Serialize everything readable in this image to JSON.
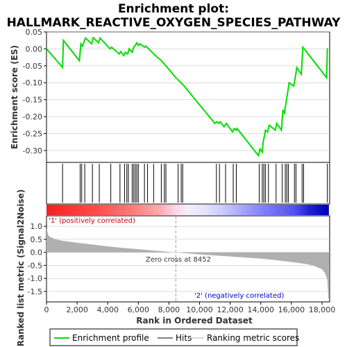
{
  "chart_data": {
    "type": "line",
    "title_line1": "Enrichment plot:",
    "title_line2": "HALLMARK_REACTIVE_OXYGEN_SPECIES_PATHWAY",
    "ylabel_top": "Enrichment score (ES)",
    "ylabel_bottom": "Ranked list metric (Signal2Noise)",
    "xlabel": "Rank in Ordered Dataset",
    "xlim": [
      0,
      18500
    ],
    "es_ylim": [
      -0.335,
      0.05
    ],
    "metric_ylim": [
      -1.9,
      1.4
    ],
    "x_ticks": [
      0,
      2000,
      4000,
      6000,
      8000,
      10000,
      12000,
      14000,
      16000,
      18000
    ],
    "x_tick_labels": [
      "0",
      "2,000",
      "4,000",
      "6,000",
      "8,000",
      "10,000",
      "12,000",
      "14,000",
      "16,000",
      "18,000"
    ],
    "es_ticks": [
      0.05,
      0.0,
      -0.05,
      -0.1,
      -0.15,
      -0.2,
      -0.25,
      -0.3
    ],
    "es_tick_labels": [
      "0.05",
      "0.00",
      "-0.05",
      "-0.10",
      "-0.15",
      "-0.20",
      "-0.25",
      "-0.30"
    ],
    "metric_ticks": [
      1.0,
      0.5,
      0.0,
      -0.5,
      -1.0,
      -1.5
    ],
    "metric_tick_labels": [
      "1.0",
      "0.5",
      "0.0",
      "-0.5",
      "-1.0",
      "-1.5"
    ],
    "hits": [
      1050,
      2200,
      2300,
      2500,
      3000,
      3450,
      4200,
      4800,
      5100,
      5250,
      5350,
      5600,
      5700,
      5800,
      5900,
      6000,
      6400,
      6600,
      7000,
      7500,
      7700,
      7800,
      8600,
      8800,
      8900,
      11100,
      11300,
      11700,
      12200,
      12400,
      13900,
      14100,
      14200,
      14300,
      14500,
      15000,
      15400,
      15600,
      15700,
      15800,
      16200,
      16300,
      16700,
      16800,
      18350
    ],
    "es_points": [
      [
        0,
        0.0
      ],
      [
        1050,
        -0.055
      ],
      [
        1100,
        0.025
      ],
      [
        2150,
        -0.035
      ],
      [
        2250,
        0.015
      ],
      [
        2350,
        0.008
      ],
      [
        2550,
        0.032
      ],
      [
        2950,
        0.015
      ],
      [
        3050,
        0.033
      ],
      [
        3400,
        0.018
      ],
      [
        3500,
        0.032
      ],
      [
        4150,
        0.0
      ],
      [
        4250,
        0.005
      ],
      [
        4750,
        -0.015
      ],
      [
        4850,
        -0.008
      ],
      [
        5050,
        -0.02
      ],
      [
        5150,
        -0.01
      ],
      [
        5300,
        -0.015
      ],
      [
        5400,
        0.0
      ],
      [
        5600,
        -0.01
      ],
      [
        5700,
        0.005
      ],
      [
        5800,
        0.01
      ],
      [
        5900,
        0.018
      ],
      [
        6000,
        0.01
      ],
      [
        6100,
        0.015
      ],
      [
        6400,
        0.005
      ],
      [
        6500,
        0.008
      ],
      [
        7000,
        -0.015
      ],
      [
        7500,
        -0.035
      ],
      [
        7800,
        -0.05
      ],
      [
        8450,
        -0.085
      ],
      [
        9000,
        -0.11
      ],
      [
        10000,
        -0.165
      ],
      [
        11000,
        -0.22
      ],
      [
        11150,
        -0.215
      ],
      [
        11250,
        -0.22
      ],
      [
        11350,
        -0.215
      ],
      [
        11600,
        -0.23
      ],
      [
        11750,
        -0.22
      ],
      [
        12150,
        -0.245
      ],
      [
        12250,
        -0.235
      ],
      [
        12400,
        -0.24
      ],
      [
        12450,
        -0.235
      ],
      [
        13850,
        -0.315
      ],
      [
        13950,
        -0.295
      ],
      [
        14100,
        -0.305
      ],
      [
        14150,
        -0.275
      ],
      [
        14250,
        -0.255
      ],
      [
        14300,
        -0.24
      ],
      [
        14450,
        -0.245
      ],
      [
        14550,
        -0.225
      ],
      [
        14950,
        -0.24
      ],
      [
        15050,
        -0.22
      ],
      [
        15350,
        -0.24
      ],
      [
        15450,
        -0.18
      ],
      [
        15550,
        -0.19
      ],
      [
        15650,
        -0.16
      ],
      [
        15750,
        -0.13
      ],
      [
        15850,
        -0.1
      ],
      [
        16150,
        -0.11
      ],
      [
        16250,
        -0.085
      ],
      [
        16350,
        -0.055
      ],
      [
        16650,
        -0.075
      ],
      [
        16750,
        0.005
      ],
      [
        18300,
        -0.085
      ],
      [
        18350,
        0.002
      ]
    ],
    "metric_points": [
      [
        0,
        0.9
      ],
      [
        150,
        0.62
      ],
      [
        500,
        0.52
      ],
      [
        1000,
        0.45
      ],
      [
        2000,
        0.37
      ],
      [
        3000,
        0.3
      ],
      [
        4000,
        0.23
      ],
      [
        5000,
        0.17
      ],
      [
        6000,
        0.12
      ],
      [
        7000,
        0.07
      ],
      [
        8000,
        0.02
      ],
      [
        8452,
        0.0
      ],
      [
        9000,
        -0.03
      ],
      [
        10000,
        -0.08
      ],
      [
        11000,
        -0.12
      ],
      [
        12000,
        -0.16
      ],
      [
        13000,
        -0.2
      ],
      [
        14000,
        -0.24
      ],
      [
        15000,
        -0.3
      ],
      [
        16000,
        -0.37
      ],
      [
        17000,
        -0.45
      ],
      [
        17500,
        -0.52
      ],
      [
        18000,
        -0.65
      ],
      [
        18200,
        -0.8
      ],
      [
        18350,
        -1.05
      ],
      [
        18420,
        -1.78
      ],
      [
        18450,
        -1.78
      ]
    ],
    "zero_cross_label": "Zero cross at 8452",
    "zero_cross_x": 8452,
    "pos_label": "'1' (positively correlated)",
    "neg_label": "'2' (negatively correlated)",
    "legend": [
      "Enrichment profile",
      "Hits",
      "Ranking metric scores"
    ],
    "colors": {
      "es_line": "#00dd00",
      "hit": "#000000",
      "metric_fill": "#b0b0b0",
      "pos_text": "#cc0000",
      "neg_text": "#0000cc",
      "grid": "#bbbbbb"
    }
  }
}
